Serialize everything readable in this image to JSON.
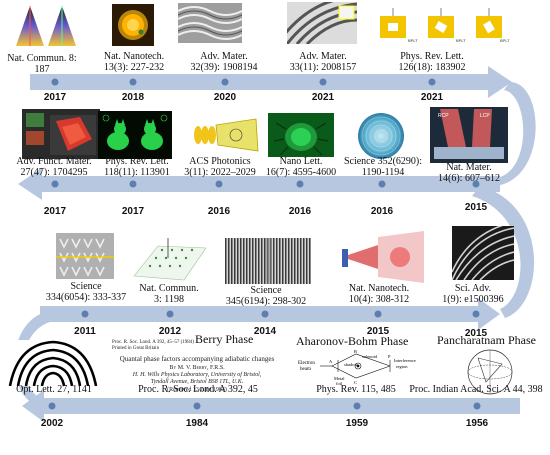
{
  "rows": {
    "row1": {
      "years": [
        "2017",
        "2018",
        "2020",
        "2021",
        "2021"
      ],
      "labels": [
        [
          "Nat. Commun. 8:",
          "187"
        ],
        [
          "Nat. Nanotech.",
          "13(3): 227-232"
        ],
        [
          "Adv. Mater.",
          "32(39): 1908194"
        ],
        [
          "Adv. Mater.",
          "33(11): 2008157"
        ],
        [
          "Phys. Rev. Lett.",
          "126(18): 183902"
        ]
      ]
    },
    "row2": {
      "years": [
        "2017",
        "2017",
        "2016",
        "2016",
        "2016",
        "2015"
      ],
      "labels": [
        [
          "Adv. Funct. Mater.",
          "27(47): 1704295"
        ],
        [
          "Phys. Rev. Lett.",
          "118(11): 113901"
        ],
        [
          "ACS Photonics",
          "3(11): 2022–2029"
        ],
        [
          "Nano Lett.",
          "16(7): 4595-4600"
        ],
        [
          "Science 352(6290):",
          "1190-1194"
        ],
        [
          "Nat. Mater.",
          "14(6): 607–612"
        ]
      ]
    },
    "row3": {
      "years": [
        "2011",
        "2012",
        "2014",
        "2015",
        "2015"
      ],
      "labels": [
        [
          "Science",
          "334(6054): 333-337"
        ],
        [
          "Nat. Commun.",
          "3: 1198"
        ],
        [
          "Science",
          "345(6194): 298-302"
        ],
        [
          "Nat. Nanotech.",
          "10(4): 308-312"
        ],
        [
          "Sci. Adv.",
          "1(9): e1500396"
        ]
      ]
    },
    "row4": {
      "years": [
        "2002",
        "1984",
        "1959",
        "1956"
      ],
      "labels": [
        "Opt. Lett. 27, 1141",
        "Proc. R. Soc. Lond. A 392, 45",
        "Phys. Rev. 115, 485",
        "Proc. Indian Acad. Sci. A 44, 398"
      ]
    }
  },
  "phases": {
    "berry": "Berry Phase",
    "ab": "Aharonov-Bohm Phase",
    "pancharatnam": "Pancharatnam Phase"
  },
  "paper": {
    "line1": "Proc. R. Soc. Lond. A 392, 45–57 (1984)",
    "line2": "Printed in Great Britain",
    "title": "Quantal phase factors accompanying adiabatic changes",
    "author": "By M. V. Berry, F.R.S.",
    "affil1": "H. H. Wills Physics Laboratory, University of Bristol,",
    "affil2": "Tyndall Avenue, Bristol BS8 1TL, U.K.",
    "received": "(Received 13 June 1983)"
  },
  "ab_diagram": {
    "electron": "Electron",
    "beam": "beam",
    "shadow": "shadow",
    "solenoid": "solenoid",
    "interference": "Interference",
    "region": "region",
    "metal": "Metal",
    "foil": "foil",
    "a": "A",
    "b": "B",
    "c": "C",
    "p": "P"
  },
  "thumbs": {
    "pbp_spin_labels": [
      "BPLT",
      "BPLT",
      "BPLT"
    ],
    "lcp": "LCP",
    "rcp": "RCP"
  },
  "colors": {
    "arrow": "#b8c7e0",
    "arrow_edge": "#a7b9d8",
    "dot": "#5c7fb0",
    "sci_bg": "#4fa3c7"
  }
}
